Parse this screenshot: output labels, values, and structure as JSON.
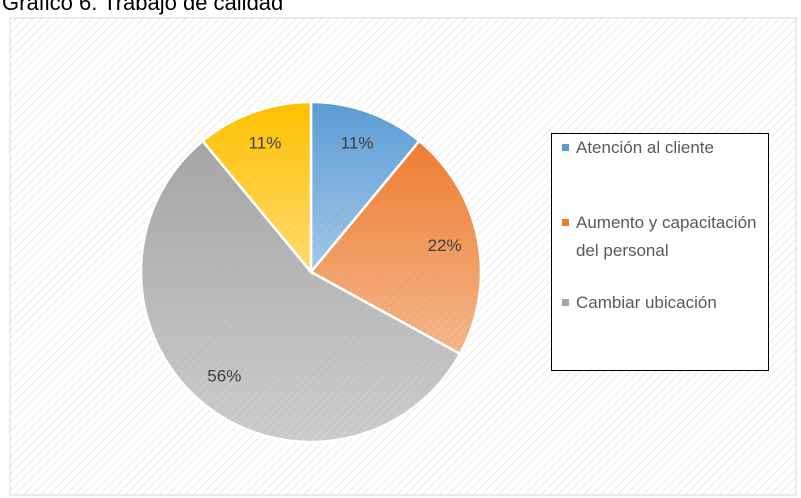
{
  "chart_data": {
    "type": "pie",
    "title": "Gráfico 6. Trabajo de calidad",
    "categories": [
      "Atención al cliente",
      "Aumento y capacitación del personal",
      "Cambiar ubicación",
      null
    ],
    "values": [
      11,
      22,
      56,
      11
    ],
    "value_labels": [
      "11%",
      "22%",
      "56%",
      "11%"
    ],
    "colors": [
      "#5b9bd5",
      "#ed7d31",
      "#a5a5a5",
      "#ffc000"
    ],
    "legend": "right"
  }
}
